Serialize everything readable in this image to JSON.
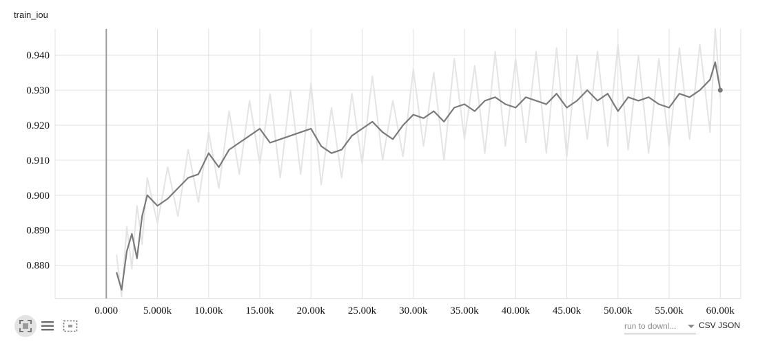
{
  "title": "train_iou",
  "chart_data": {
    "type": "line",
    "xlim": [
      -5000,
      62000
    ],
    "ylim": [
      0.8705,
      0.9475
    ],
    "x_ticks": [
      0,
      5000,
      10000,
      15000,
      20000,
      25000,
      30000,
      35000,
      40000,
      45000,
      50000,
      55000,
      60000
    ],
    "x_tick_labels": [
      "0.000",
      "5.000k",
      "10.00k",
      "15.00k",
      "20.00k",
      "25.00k",
      "30.00k",
      "35.00k",
      "40.00k",
      "45.00k",
      "50.00k",
      "55.00k",
      "60.00k"
    ],
    "y_ticks": [
      0.88,
      0.89,
      0.9,
      0.91,
      0.92,
      0.93,
      0.94
    ],
    "y_tick_labels": [
      "0.880",
      "0.890",
      "0.900",
      "0.910",
      "0.920",
      "0.930",
      "0.940"
    ],
    "grid": true,
    "series": [
      {
        "role": "smoothed",
        "color": "#7a7a7a",
        "x": [
          1000,
          1500,
          2000,
          2500,
          3000,
          3500,
          4000,
          5000,
          6000,
          7000,
          8000,
          9000,
          10000,
          11000,
          12000,
          13000,
          14000,
          15000,
          16000,
          17000,
          18000,
          19000,
          20000,
          21000,
          22000,
          23000,
          24000,
          25000,
          26000,
          27000,
          28000,
          29000,
          30000,
          31000,
          32000,
          33000,
          34000,
          35000,
          36000,
          37000,
          38000,
          39000,
          40000,
          41000,
          42000,
          43000,
          44000,
          45000,
          46000,
          47000,
          48000,
          49000,
          50000,
          51000,
          52000,
          53000,
          54000,
          55000,
          56000,
          57000,
          58000,
          59000,
          59500,
          60000
        ],
        "y": [
          0.878,
          0.873,
          0.884,
          0.889,
          0.882,
          0.894,
          0.9,
          0.897,
          0.899,
          0.902,
          0.905,
          0.906,
          0.912,
          0.908,
          0.913,
          0.915,
          0.917,
          0.919,
          0.915,
          0.916,
          0.917,
          0.918,
          0.919,
          0.914,
          0.912,
          0.913,
          0.917,
          0.919,
          0.921,
          0.918,
          0.916,
          0.92,
          0.923,
          0.922,
          0.924,
          0.921,
          0.925,
          0.926,
          0.924,
          0.927,
          0.928,
          0.926,
          0.925,
          0.928,
          0.927,
          0.926,
          0.929,
          0.925,
          0.927,
          0.93,
          0.927,
          0.929,
          0.924,
          0.928,
          0.927,
          0.928,
          0.926,
          0.925,
          0.929,
          0.928,
          0.93,
          0.933,
          0.938,
          0.93
        ]
      },
      {
        "role": "raw",
        "color": "#e4e4e4",
        "x": [
          1000,
          1500,
          2000,
          2500,
          3000,
          3500,
          4000,
          5000,
          6000,
          7000,
          8000,
          9000,
          10000,
          11000,
          12000,
          13000,
          14000,
          15000,
          16000,
          17000,
          18000,
          19000,
          20000,
          21000,
          22000,
          23000,
          24000,
          25000,
          26000,
          27000,
          28000,
          29000,
          30000,
          31000,
          32000,
          33000,
          34000,
          35000,
          36000,
          37000,
          38000,
          39000,
          40000,
          41000,
          42000,
          43000,
          44000,
          45000,
          46000,
          47000,
          48000,
          49000,
          50000,
          51000,
          52000,
          53000,
          54000,
          55000,
          56000,
          57000,
          58000,
          59000,
          59500,
          60000
        ],
        "y": [
          0.883,
          0.871,
          0.891,
          0.879,
          0.897,
          0.886,
          0.905,
          0.892,
          0.908,
          0.894,
          0.913,
          0.898,
          0.918,
          0.902,
          0.924,
          0.906,
          0.927,
          0.909,
          0.929,
          0.905,
          0.93,
          0.906,
          0.932,
          0.903,
          0.925,
          0.905,
          0.929,
          0.909,
          0.934,
          0.91,
          0.927,
          0.911,
          0.936,
          0.914,
          0.935,
          0.91,
          0.939,
          0.916,
          0.937,
          0.912,
          0.941,
          0.914,
          0.939,
          0.915,
          0.941,
          0.912,
          0.942,
          0.911,
          0.94,
          0.916,
          0.941,
          0.914,
          0.943,
          0.913,
          0.94,
          0.912,
          0.939,
          0.914,
          0.942,
          0.916,
          0.943,
          0.918,
          0.948,
          0.928
        ]
      }
    ],
    "last_point": {
      "x": 60000,
      "y": 0.93
    }
  },
  "toolbar": {
    "icons": [
      "fit-domain-icon",
      "toggle-log-scale-icon",
      "selection-box-icon"
    ]
  },
  "run_select": {
    "value": "run to downl..."
  },
  "downloads": {
    "csv": "CSV",
    "json": "JSON"
  }
}
